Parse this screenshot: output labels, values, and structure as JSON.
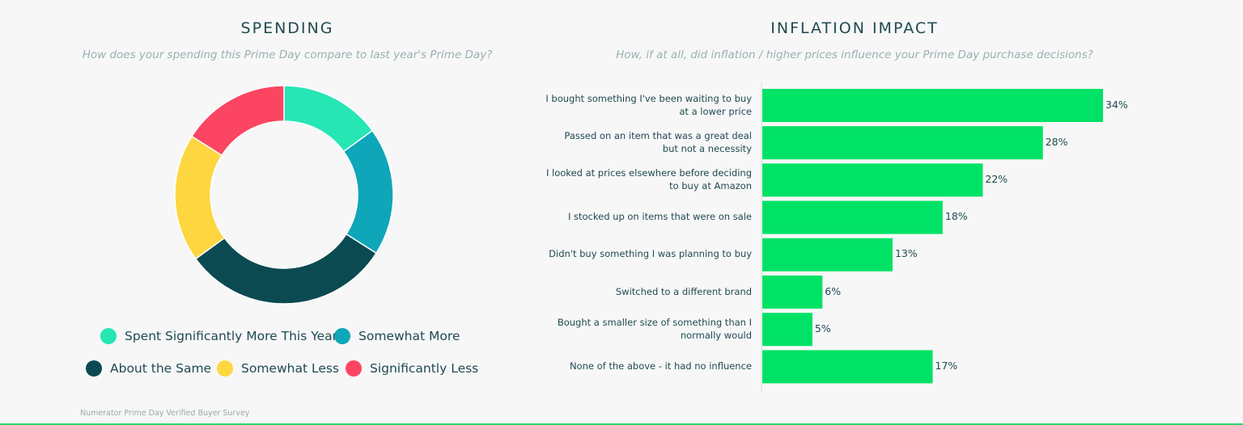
{
  "left": {
    "title": "SPENDING",
    "subtitle": "How does your spending this Prime Day compare to last year's Prime Day?"
  },
  "right": {
    "title": "INFLATION IMPACT",
    "subtitle": "How, if at all, did inflation / higher prices influence your Prime Day purchase decisions?"
  },
  "source": "Numerator Prime Day Verified Buyer Survey",
  "chart_data": [
    {
      "type": "pie",
      "donut": true,
      "title": "SPENDING",
      "labels": [
        "Spent Significantly More This Year",
        "Somewhat More",
        "About the Same",
        "Somewhat Less",
        "Significantly Less"
      ],
      "values": [
        15,
        19,
        31,
        19,
        16
      ],
      "colors": [
        "#26e6b4",
        "#0ea6b8",
        "#0c4a52",
        "#fdd640",
        "#fc4562"
      ],
      "legend": "bottom"
    },
    {
      "type": "bar",
      "orientation": "horizontal",
      "title": "INFLATION IMPACT",
      "categories": [
        [
          "I bought something I've been waiting to buy",
          "at a lower price"
        ],
        [
          "Passed on an item that was a great deal",
          "but not a necessity"
        ],
        [
          "I looked at prices elsewhere before deciding",
          "to buy at Amazon"
        ],
        [
          "I stocked up on items that were on sale"
        ],
        [
          "Didn't buy something I was planning to buy"
        ],
        [
          "Switched to a different brand"
        ],
        [
          "Bought a smaller size of something than I",
          "normally would"
        ],
        [
          "None of the above - it had no influence"
        ]
      ],
      "values": [
        34,
        28,
        22,
        18,
        13,
        6,
        5,
        17
      ],
      "value_labels": [
        "34%",
        "28%",
        "22%",
        "18%",
        "13%",
        "6%",
        "5%",
        "17%"
      ],
      "bar_color": "#00e265",
      "xlim": [
        0,
        34
      ]
    }
  ]
}
